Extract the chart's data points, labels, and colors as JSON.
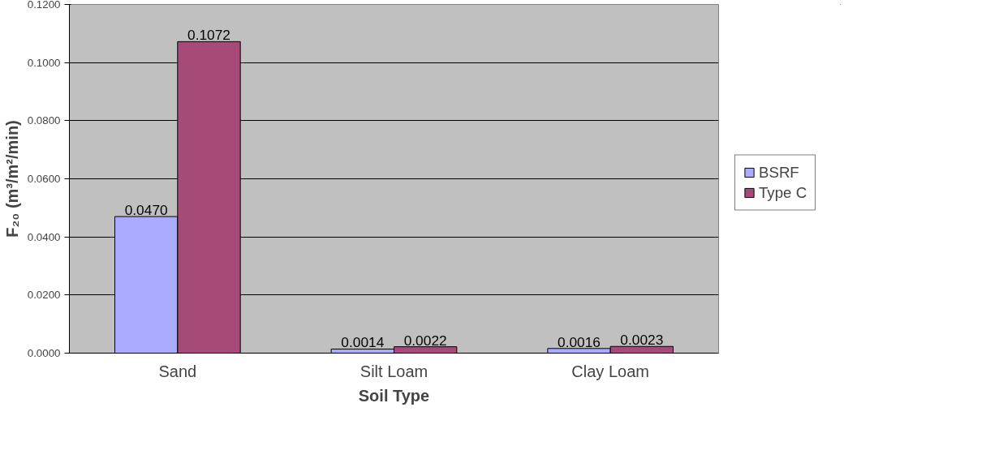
{
  "chart_data": {
    "type": "bar",
    "xlabel": "Soil Type",
    "ylabel": "F₂₀ (m³/m²/min)",
    "categories": [
      "Sand",
      "Silt Loam",
      "Clay Loam"
    ],
    "series": [
      {
        "name": "BSRF",
        "color": "#aaaaff",
        "values": [
          0.047,
          0.0014,
          0.0016
        ],
        "value_labels": [
          "0.0470",
          "0.0014",
          "0.0016"
        ]
      },
      {
        "name": "Type C",
        "color": "#a64a78",
        "values": [
          0.1072,
          0.0022,
          0.0023
        ],
        "value_labels": [
          "0.1072",
          "0.0022",
          "0.0023"
        ]
      }
    ],
    "ylim": [
      0,
      0.12
    ],
    "yticks": [
      {
        "value": 0,
        "label": "0.0000"
      },
      {
        "value": 0.02,
        "label": "0.0200"
      },
      {
        "value": 0.04,
        "label": "0.0400"
      },
      {
        "value": 0.06,
        "label": "0.0600"
      },
      {
        "value": 0.08,
        "label": "0.0800"
      },
      {
        "value": 0.1,
        "label": "0.1000"
      },
      {
        "value": 0.12,
        "label": "0.1200"
      }
    ],
    "grid": "y",
    "legend": "right"
  }
}
